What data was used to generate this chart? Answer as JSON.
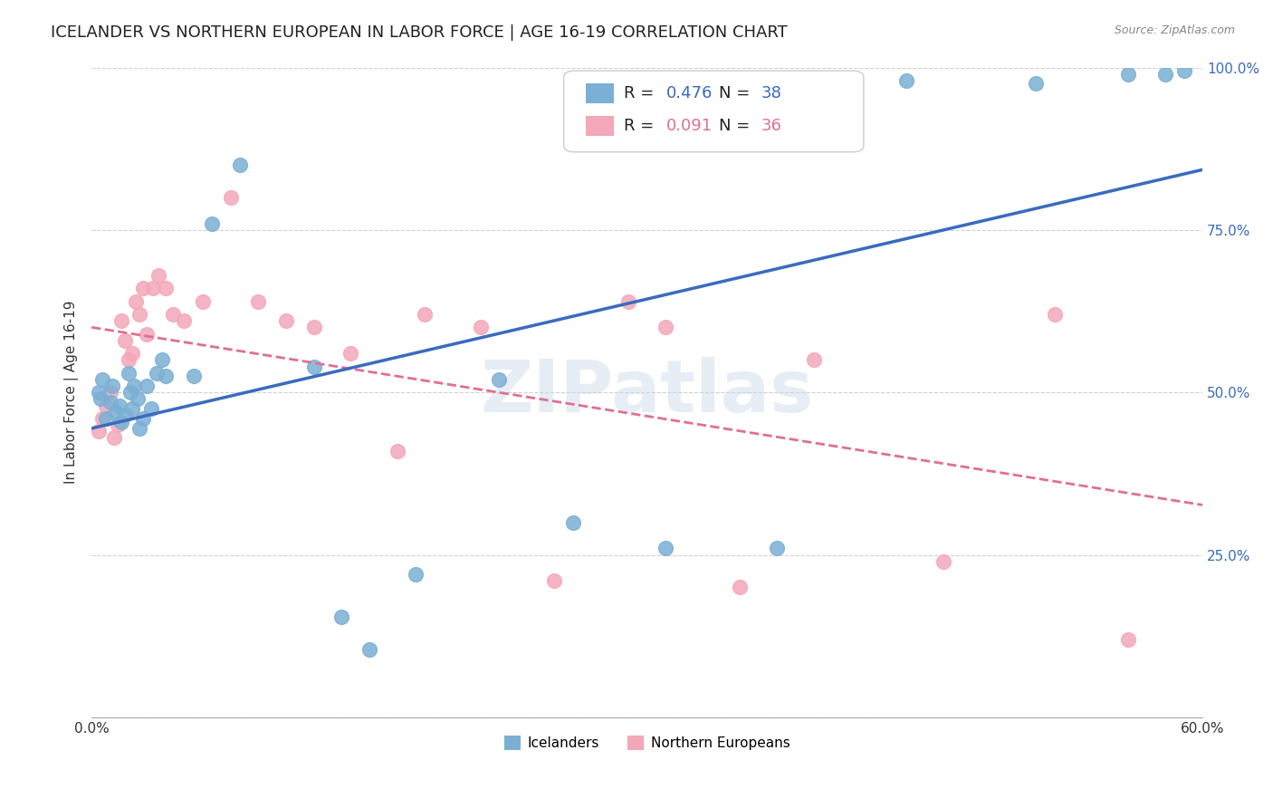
{
  "title": "ICELANDER VS NORTHERN EUROPEAN IN LABOR FORCE | AGE 16-19 CORRELATION CHART",
  "source": "Source: ZipAtlas.com",
  "ylabel": "In Labor Force | Age 16-19",
  "xlim": [
    0.0,
    0.6
  ],
  "ylim": [
    0.0,
    1.0
  ],
  "xticks": [
    0.0,
    0.1,
    0.2,
    0.3,
    0.4,
    0.5,
    0.6
  ],
  "xticklabels": [
    "0.0%",
    "",
    "",
    "",
    "",
    "",
    "60.0%"
  ],
  "yticks_right": [
    0.0,
    0.25,
    0.5,
    0.75,
    1.0
  ],
  "yticklabels_right": [
    "",
    "25.0%",
    "50.0%",
    "75.0%",
    "100.0%"
  ],
  "blue_r": "0.476",
  "blue_n": "38",
  "pink_r": "0.091",
  "pink_n": "36",
  "blue_color": "#7bafd4",
  "pink_color": "#f4a7b9",
  "blue_line_color": "#3a6bbf",
  "pink_line_color": "#e07090",
  "grid_color": "#d0d0d0",
  "background_color": "#ffffff",
  "watermark_text": "ZIPatlas",
  "icelanders_x": [
    0.004,
    0.005,
    0.006,
    0.008,
    0.01,
    0.011,
    0.013,
    0.015,
    0.016,
    0.018,
    0.02,
    0.021,
    0.022,
    0.023,
    0.025,
    0.026,
    0.028,
    0.03,
    0.032,
    0.035,
    0.038,
    0.04,
    0.055,
    0.065,
    0.08,
    0.12,
    0.135,
    0.15,
    0.175,
    0.22,
    0.26,
    0.31,
    0.37,
    0.44,
    0.51,
    0.56,
    0.58,
    0.59
  ],
  "icelanders_y": [
    0.5,
    0.49,
    0.52,
    0.46,
    0.485,
    0.51,
    0.47,
    0.48,
    0.455,
    0.465,
    0.53,
    0.5,
    0.475,
    0.51,
    0.49,
    0.445,
    0.46,
    0.51,
    0.475,
    0.53,
    0.55,
    0.525,
    0.525,
    0.76,
    0.85,
    0.54,
    0.155,
    0.105,
    0.22,
    0.52,
    0.3,
    0.26,
    0.26,
    0.98,
    0.975,
    0.99,
    0.99,
    0.995
  ],
  "northern_europeans_x": [
    0.004,
    0.006,
    0.008,
    0.01,
    0.012,
    0.014,
    0.016,
    0.018,
    0.02,
    0.022,
    0.024,
    0.026,
    0.028,
    0.03,
    0.033,
    0.036,
    0.04,
    0.044,
    0.05,
    0.06,
    0.075,
    0.09,
    0.105,
    0.12,
    0.14,
    0.165,
    0.18,
    0.21,
    0.25,
    0.29,
    0.31,
    0.35,
    0.39,
    0.46,
    0.52,
    0.56
  ],
  "northern_europeans_y": [
    0.44,
    0.46,
    0.48,
    0.5,
    0.43,
    0.45,
    0.61,
    0.58,
    0.55,
    0.56,
    0.64,
    0.62,
    0.66,
    0.59,
    0.66,
    0.68,
    0.66,
    0.62,
    0.61,
    0.64,
    0.8,
    0.64,
    0.61,
    0.6,
    0.56,
    0.41,
    0.62,
    0.6,
    0.21,
    0.64,
    0.6,
    0.2,
    0.55,
    0.24,
    0.62,
    0.12
  ],
  "legend_fontsize": 13,
  "title_fontsize": 13,
  "axis_label_fontsize": 11,
  "tick_fontsize": 11
}
